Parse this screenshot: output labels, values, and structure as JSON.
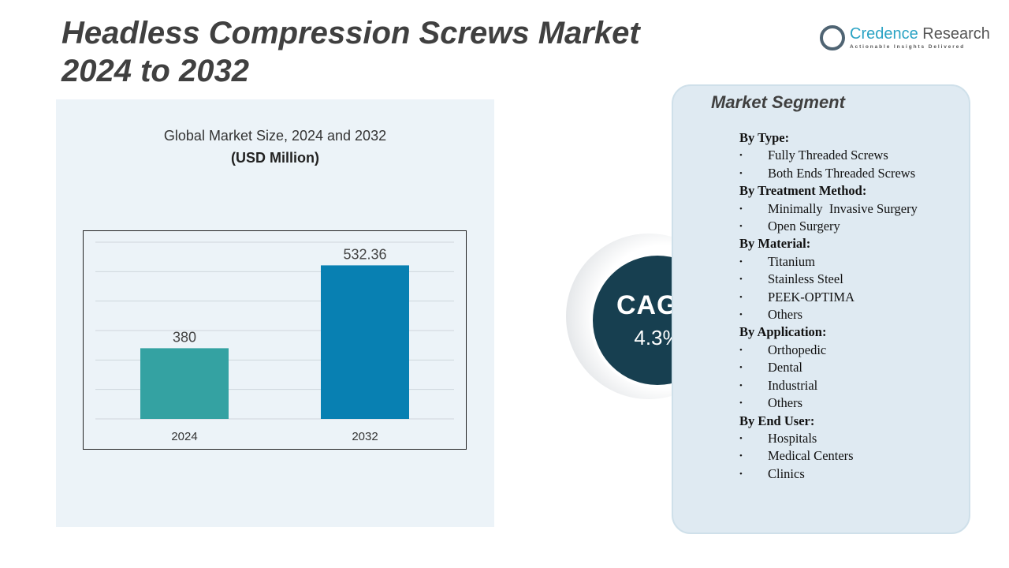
{
  "header": {
    "title_line1": "Headless Compression Screws Market",
    "title_line2": "2024 to 2032"
  },
  "logo": {
    "name_part1": "Credence",
    "name_part2": " Research",
    "tagline": "Actionable Insights Delivered"
  },
  "chart_data": {
    "type": "bar",
    "title": "Global Market Size, 2024 and 2032",
    "subtitle": "(USD Million)",
    "categories": [
      "2024",
      "2032"
    ],
    "values": [
      380,
      532.36
    ],
    "value_labels": [
      "380",
      "532.36"
    ],
    "colors": [
      "#34a2a2",
      "#0880b2"
    ],
    "ylim": [
      250,
      575
    ],
    "grid": true,
    "gridlines": 7
  },
  "cagr": {
    "label": "CAGR",
    "value": "4.3%"
  },
  "segment": {
    "title": "Market Segment",
    "groups": [
      {
        "heading": "By Type:",
        "items": [
          "Fully Threaded Screws",
          "Both Ends Threaded Screws"
        ]
      },
      {
        "heading": "By Treatment Method:",
        "items": [
          "Minimally  Invasive Surgery",
          "Open Surgery"
        ]
      },
      {
        "heading": "By Material:",
        "items": [
          "Titanium",
          "Stainless Steel",
          "PEEK-OPTIMA",
          "Others"
        ]
      },
      {
        "heading": "By Application:",
        "items": [
          "Orthopedic",
          "Dental",
          "Industrial",
          "Others"
        ]
      },
      {
        "heading": "By End User:",
        "items": [
          "Hospitals",
          "Medical Centers",
          "Clinics"
        ]
      }
    ]
  }
}
